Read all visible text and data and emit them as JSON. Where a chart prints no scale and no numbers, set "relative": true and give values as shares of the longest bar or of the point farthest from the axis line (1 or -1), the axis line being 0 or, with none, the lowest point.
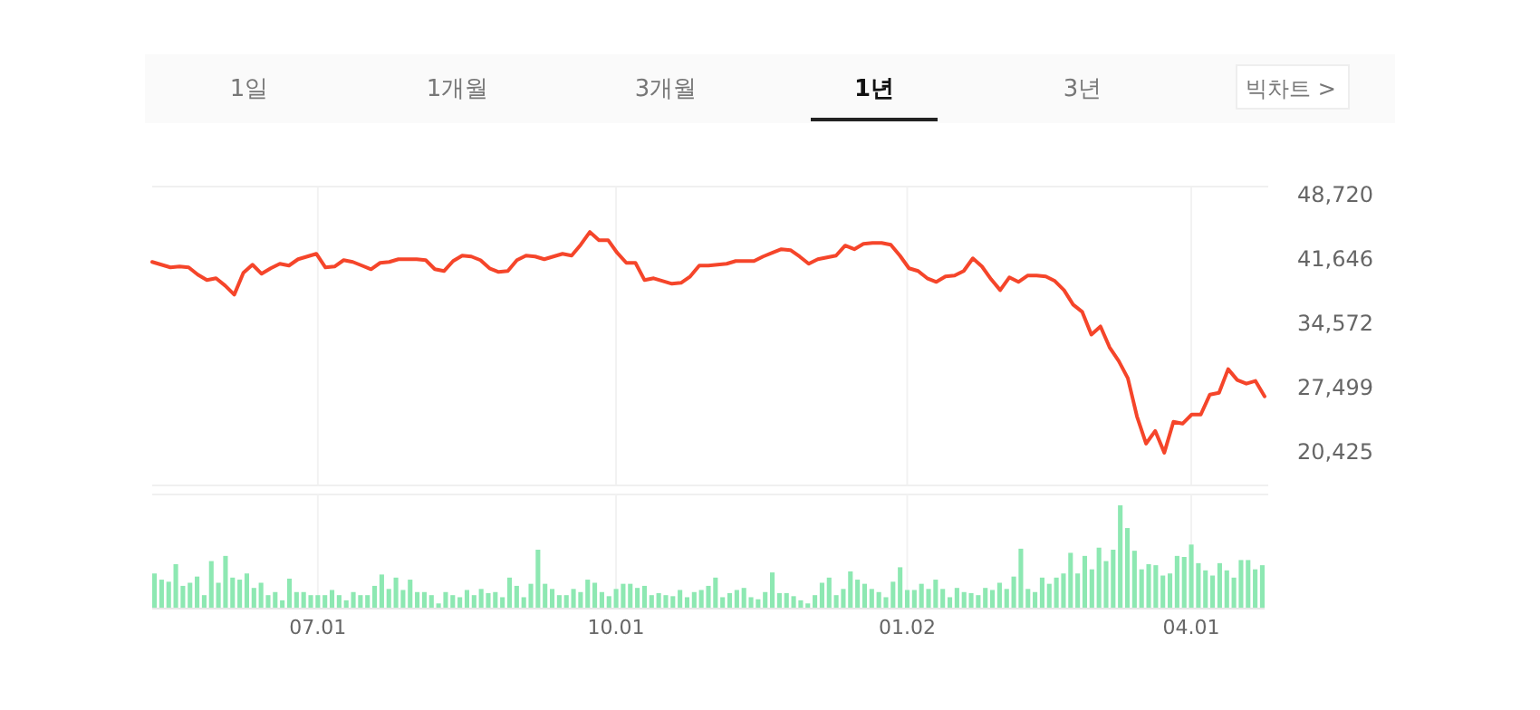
{
  "chart_data": [
    {
      "type": "line",
      "annotations": [
        "1일",
        "1개월",
        "3개월",
        "1년",
        "3년",
        "빅차트 >"
      ],
      "categories": [
        null,
        null,
        null,
        null,
        null,
        null,
        null,
        null,
        null,
        null,
        null,
        null,
        null,
        null,
        null,
        null,
        null,
        null,
        null,
        null,
        null,
        null,
        null,
        null,
        null,
        null,
        null,
        null,
        null,
        null,
        null,
        null,
        null,
        null,
        null,
        null,
        null,
        null,
        null,
        null,
        null,
        null,
        null,
        null,
        null,
        null,
        null,
        null,
        null,
        null,
        null,
        null,
        null,
        null,
        null,
        null,
        null,
        null,
        null,
        null,
        null,
        null,
        null,
        null,
        null,
        null,
        null,
        null,
        null,
        null,
        null,
        null,
        null,
        null,
        null,
        null,
        null,
        null,
        null,
        null,
        null,
        null,
        null,
        null,
        null,
        null,
        null,
        null,
        null,
        null,
        null,
        null,
        null,
        null,
        null,
        null,
        null,
        null,
        null,
        null,
        null,
        null,
        null,
        null,
        null,
        null,
        null,
        null,
        null,
        null,
        null,
        null,
        null,
        null,
        null,
        null,
        null,
        null,
        null,
        null,
        null,
        null,
        null
      ],
      "ylim": [
        16600,
        49500
      ],
      "yticks": [
        {
          "value": 48720,
          "label": "48,720"
        },
        {
          "value": 41646,
          "label": "41,646"
        },
        {
          "value": 34572,
          "label": "34,572"
        },
        {
          "value": 27499,
          "label": "27,499"
        },
        {
          "value": 20425,
          "label": "20,425"
        }
      ],
      "line_style": "solid",
      "marker": "none",
      "series": [
        {
          "color": "#f5452a",
          "values": [
            41200,
            40900,
            40600,
            40700,
            40600,
            39800,
            39200,
            39400,
            38600,
            37600,
            40000,
            40900,
            39900,
            40500,
            41000,
            40800,
            41500,
            41800,
            42100,
            40600,
            40700,
            41400,
            41200,
            40800,
            40400,
            41100,
            41200,
            41500,
            41500,
            41500,
            41400,
            40400,
            40200,
            41300,
            41900,
            41800,
            41400,
            40500,
            40100,
            40200,
            41400,
            41900,
            41800,
            41500,
            41800,
            42100,
            41900,
            43100,
            44500,
            43600,
            43600,
            42200,
            41100,
            41100,
            39200,
            39400,
            39100,
            38800,
            38900,
            39600,
            40800,
            40800,
            40900,
            41000,
            41300,
            41300,
            41300,
            41800,
            42200,
            42600,
            42500,
            41800,
            41000,
            41500,
            41700,
            41900,
            43000,
            42600,
            43200,
            43300,
            43300,
            43100,
            41900,
            40500,
            40200,
            39400,
            39000,
            39600,
            39700,
            40200,
            41600,
            40700,
            39300,
            38100,
            39500,
            39000,
            39700,
            39700,
            39600,
            39100,
            38100,
            36500,
            35700,
            33200,
            34100,
            31800,
            30300,
            28400,
            24200,
            21200,
            22600,
            20200,
            23600,
            23400,
            24400,
            24400,
            26600,
            26800,
            29400,
            28200,
            27800,
            28100,
            26400
          ]
        }
      ]
    },
    {
      "type": "bar",
      "relative": true,
      "color": "#8de8b2",
      "grid": "x",
      "categories": [
        null,
        null,
        null,
        null,
        null,
        null,
        null,
        null,
        null,
        null,
        null,
        null,
        null,
        null,
        null,
        null,
        null,
        null,
        null,
        null,
        null,
        null,
        null,
        "07.01",
        null,
        null,
        null,
        null,
        null,
        null,
        null,
        null,
        null,
        null,
        null,
        null,
        null,
        null,
        null,
        null,
        null,
        null,
        null,
        null,
        null,
        null,
        null,
        null,
        null,
        null,
        null,
        null,
        null,
        null,
        null,
        null,
        null,
        null,
        null,
        null,
        null,
        null,
        null,
        null,
        null,
        "10.01",
        null,
        null,
        null,
        null,
        null,
        null,
        null,
        null,
        null,
        null,
        null,
        null,
        null,
        null,
        null,
        null,
        null,
        null,
        null,
        null,
        null,
        null,
        null,
        null,
        null,
        null,
        null,
        null,
        null,
        null,
        null,
        null,
        null,
        null,
        null,
        null,
        null,
        null,
        null,
        null,
        "01.02",
        null,
        null,
        null,
        null,
        null,
        null,
        null,
        null,
        null,
        null,
        null,
        null,
        null,
        null,
        null,
        null,
        null,
        null,
        null,
        null,
        null,
        null,
        null,
        null,
        null,
        null,
        null,
        null,
        null,
        null,
        null,
        null,
        null,
        null,
        null,
        null,
        null,
        null,
        null,
        "04.01",
        null,
        null,
        null,
        null,
        null,
        null,
        null,
        null,
        null,
        null
      ],
      "values": [
        0.34,
        0.28,
        0.26,
        0.43,
        0.22,
        0.25,
        0.31,
        0.13,
        0.46,
        0.25,
        0.51,
        0.3,
        0.28,
        0.34,
        0.2,
        0.25,
        0.13,
        0.16,
        0.08,
        0.29,
        0.16,
        0.16,
        0.13,
        0.13,
        0.13,
        0.18,
        0.13,
        0.08,
        0.16,
        0.13,
        0.13,
        0.22,
        0.33,
        0.19,
        0.3,
        0.18,
        0.28,
        0.16,
        0.16,
        0.13,
        0.05,
        0.16,
        0.13,
        0.11,
        0.18,
        0.13,
        0.19,
        0.15,
        0.16,
        0.11,
        0.3,
        0.22,
        0.11,
        0.24,
        0.57,
        0.24,
        0.19,
        0.13,
        0.13,
        0.19,
        0.16,
        0.28,
        0.25,
        0.16,
        0.12,
        0.19,
        0.24,
        0.24,
        0.2,
        0.22,
        0.13,
        0.15,
        0.13,
        0.12,
        0.18,
        0.11,
        0.16,
        0.18,
        0.22,
        0.3,
        0.11,
        0.15,
        0.18,
        0.2,
        0.11,
        0.09,
        0.16,
        0.35,
        0.15,
        0.15,
        0.12,
        0.08,
        0.05,
        0.13,
        0.25,
        0.3,
        0.13,
        0.19,
        0.36,
        0.28,
        0.24,
        0.19,
        0.16,
        0.11,
        0.26,
        0.4,
        0.18,
        0.18,
        0.24,
        0.19,
        0.28,
        0.19,
        0.11,
        0.2,
        0.16,
        0.15,
        0.13,
        0.2,
        0.18,
        0.25,
        0.19,
        0.31,
        0.58,
        0.19,
        0.16,
        0.3,
        0.24,
        0.3,
        0.34,
        0.54,
        0.34,
        0.51,
        0.38,
        0.59,
        0.46,
        0.57,
        1,
        0.78,
        0.56,
        0.38,
        0.43,
        0.42,
        0.32,
        0.34,
        0.51,
        0.5,
        0.62,
        0.44,
        0.37,
        0.32,
        0.44,
        0.37,
        0.3,
        0.47,
        0.47,
        0.38,
        0.42
      ]
    }
  ]
}
